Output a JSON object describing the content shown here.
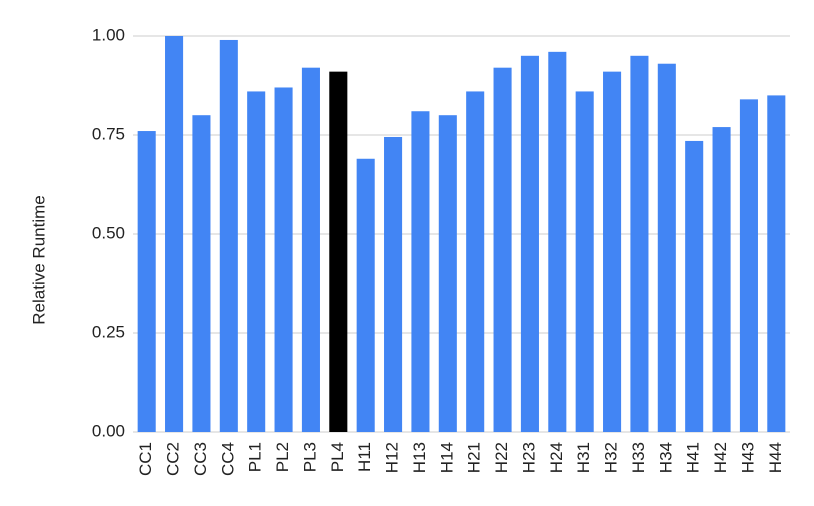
{
  "chart_data": {
    "type": "bar",
    "y_label": "Relative Runtime",
    "categories": [
      "CC1",
      "CC2",
      "CC3",
      "CC4",
      "PL1",
      "PL2",
      "PL3",
      "PL4",
      "H11",
      "H12",
      "H13",
      "H14",
      "H21",
      "H22",
      "H23",
      "H24",
      "H31",
      "H32",
      "H33",
      "H34",
      "H41",
      "H42",
      "H43",
      "H44"
    ],
    "values": [
      0.76,
      1.0,
      0.8,
      0.99,
      0.86,
      0.87,
      0.92,
      0.91,
      0.69,
      0.745,
      0.81,
      0.8,
      0.86,
      0.92,
      0.95,
      0.96,
      0.86,
      0.91,
      0.95,
      0.93,
      0.735,
      0.77,
      0.84,
      0.85
    ],
    "colors": [
      "#4285f4",
      "#4285f4",
      "#4285f4",
      "#4285f4",
      "#4285f4",
      "#4285f4",
      "#4285f4",
      "#000000",
      "#4285f4",
      "#4285f4",
      "#4285f4",
      "#4285f4",
      "#4285f4",
      "#4285f4",
      "#4285f4",
      "#4285f4",
      "#4285f4",
      "#4285f4",
      "#4285f4",
      "#4285f4",
      "#4285f4",
      "#4285f4",
      "#4285f4",
      "#4285f4"
    ],
    "ylim": [
      0,
      1
    ],
    "yticks": [
      {
        "value": 0,
        "label": "0.00"
      },
      {
        "value": 0.25,
        "label": "0.25"
      },
      {
        "value": 0.5,
        "label": "0.50"
      },
      {
        "value": 0.75,
        "label": "0.75"
      },
      {
        "value": 1,
        "label": "1.00"
      }
    ],
    "grid": true
  }
}
